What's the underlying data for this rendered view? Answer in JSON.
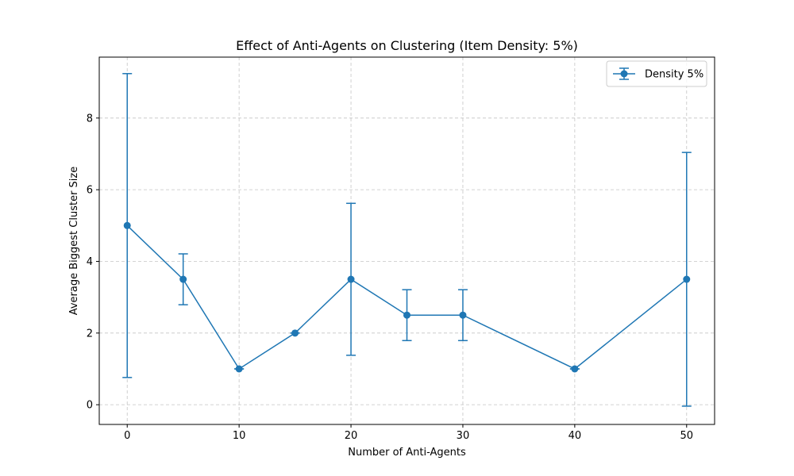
{
  "chart_data": {
    "type": "line",
    "title": "Effect of Anti-Agents on Clustering (Item Density: 5%)",
    "xlabel": "Number of Anti-Agents",
    "ylabel": "Average Biggest Cluster Size",
    "xlim": [
      -2.5,
      52.5
    ],
    "ylim": [
      -0.55,
      9.7
    ],
    "xticks": [
      0,
      10,
      20,
      30,
      40,
      50
    ],
    "yticks": [
      0,
      2,
      4,
      6,
      8
    ],
    "grid": true,
    "legend_position": "top-right",
    "series": [
      {
        "name": "Density 5%",
        "color": "#1f77b4",
        "x": [
          0,
          5,
          10,
          15,
          20,
          25,
          30,
          40,
          50
        ],
        "y": [
          5.0,
          3.5,
          1.0,
          2.0,
          3.5,
          2.5,
          2.5,
          1.0,
          3.5
        ],
        "yerr": [
          4.24,
          0.71,
          0.0,
          0.0,
          2.12,
          0.71,
          0.71,
          0.0,
          3.54
        ]
      }
    ]
  }
}
